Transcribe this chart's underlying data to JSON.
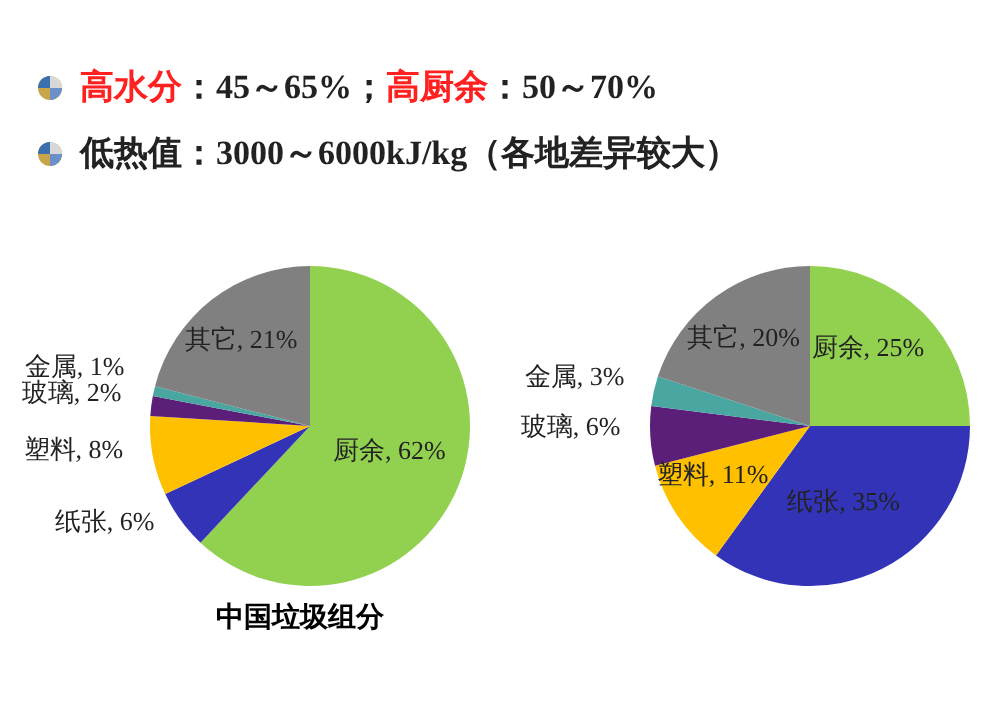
{
  "chart_data": [
    {
      "type": "pie",
      "title": "中国垃圾组分",
      "annotations": [
        "高水分：45～65%；高厨余：50～70%",
        "低热值：3000～6000kJ/kg（各地差异较大）"
      ],
      "categories": [
        "厨余",
        "纸张",
        "塑料",
        "玻璃",
        "金属",
        "其它"
      ],
      "values": [
        62,
        6,
        8,
        2,
        1,
        21
      ],
      "value_labels": [
        "62%",
        "6%",
        "8%",
        "2%",
        "1%",
        "21%"
      ],
      "colors": [
        "#92d050",
        "#3333b8",
        "#ffc000",
        "#5b1f7a",
        "#4aa6a0",
        "#808080"
      ]
    },
    {
      "type": "pie",
      "categories": [
        "厨余",
        "纸张",
        "塑料",
        "玻璃",
        "金属",
        "其它"
      ],
      "values": [
        25,
        35,
        11,
        6,
        3,
        20
      ],
      "value_labels": [
        "25%",
        "35%",
        "11%",
        "6%",
        "3%",
        "20%"
      ],
      "colors": [
        "#92d050",
        "#3333b8",
        "#ffc000",
        "#5b1f7a",
        "#4aa6a0",
        "#808080"
      ]
    }
  ]
}
